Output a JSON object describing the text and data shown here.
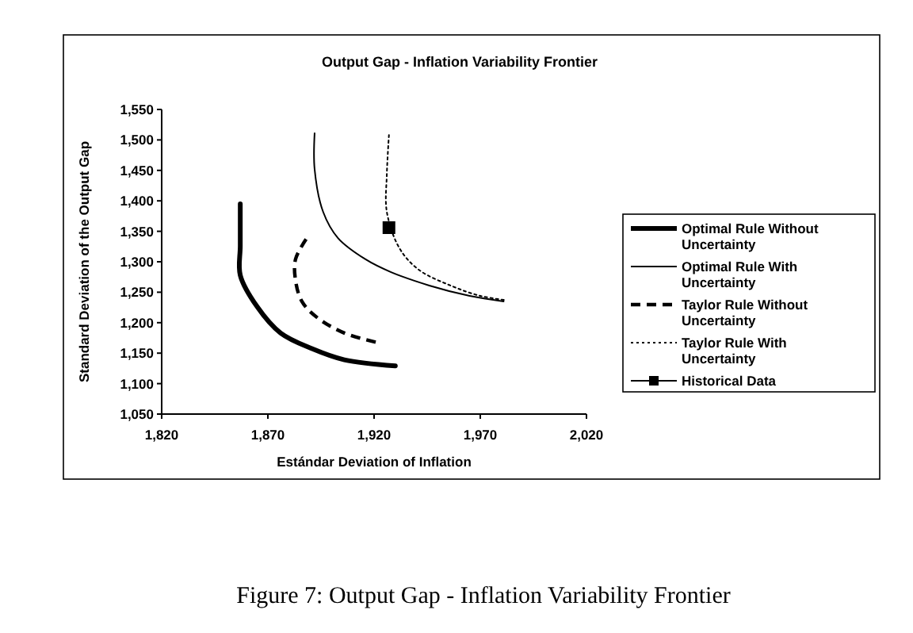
{
  "chart_data": {
    "type": "line",
    "title": "Output Gap - Inflation Variability Frontier",
    "xlabel": "Estándar Deviation of Inflation",
    "ylabel": "Standard Deviation of the Output Gap",
    "annotations": [
      "Figure 7: Output Gap - Inflation Variability Frontier"
    ],
    "xlim": [
      1820,
      2020
    ],
    "ylim": [
      1050,
      1550
    ],
    "xticks": [
      {
        "value": 1820,
        "label": "1,820"
      },
      {
        "value": 1870,
        "label": "1,870"
      },
      {
        "value": 1920,
        "label": "1,920"
      },
      {
        "value": 1970,
        "label": "1,970"
      },
      {
        "value": 2020,
        "label": "2,020"
      }
    ],
    "yticks": [
      {
        "value": 1050,
        "label": "1,050"
      },
      {
        "value": 1100,
        "label": "1,100"
      },
      {
        "value": 1150,
        "label": "1,150"
      },
      {
        "value": 1200,
        "label": "1,200"
      },
      {
        "value": 1250,
        "label": "1,250"
      },
      {
        "value": 1300,
        "label": "1,300"
      },
      {
        "value": 1350,
        "label": "1,350"
      },
      {
        "value": 1400,
        "label": "1,400"
      },
      {
        "value": 1450,
        "label": "1,450"
      },
      {
        "value": 1500,
        "label": "1,500"
      },
      {
        "value": 1550,
        "label": "1,550"
      }
    ],
    "grid": false,
    "legend": "right",
    "series": [
      {
        "name": "Optimal Rule Without Uncertainty",
        "color": "#000000",
        "line_style": "solid",
        "x": [
          1857,
          1857,
          1857,
          1865,
          1876,
          1891,
          1906,
          1930
        ],
        "values": [
          1395,
          1326,
          1278,
          1226,
          1183,
          1157,
          1139,
          1129
        ]
      },
      {
        "name": "Optimal Rule With Uncertainty",
        "color": "#000000",
        "line_style": "solid",
        "x": [
          1892,
          1892,
          1896,
          1903,
          1916,
          1928,
          1946,
          1965,
          1981
        ],
        "values": [
          1511,
          1452,
          1382,
          1339,
          1304,
          1283,
          1261,
          1244,
          1235
        ]
      },
      {
        "name": "Taylor Rule Without Uncertainty",
        "color": "#000000",
        "line_style": "dashed",
        "x": [
          1888,
          1883,
          1883,
          1886,
          1893,
          1906,
          1922
        ],
        "values": [
          1337,
          1304,
          1270,
          1235,
          1209,
          1183,
          1167
        ]
      },
      {
        "name": "Taylor Rule With Uncertainty",
        "color": "#000000",
        "line_style": "dotted",
        "x": [
          1927,
          1926,
          1926,
          1932,
          1941,
          1956,
          1970,
          1982
        ],
        "values": [
          1508,
          1443,
          1382,
          1322,
          1287,
          1261,
          1244,
          1237
        ]
      },
      {
        "name": "Historical Data",
        "type": "scatter",
        "marker": "square",
        "color": "#000000",
        "x": [
          1927
        ],
        "values": [
          1356
        ]
      }
    ]
  }
}
